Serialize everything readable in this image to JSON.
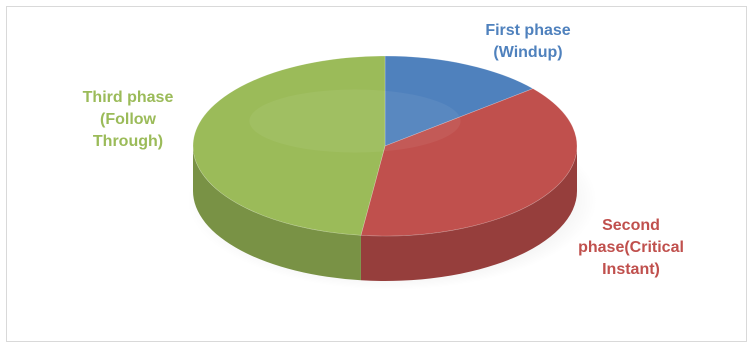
{
  "chart_data": {
    "type": "pie",
    "title": "",
    "style": "3d",
    "labels_inside": false,
    "slices": [
      {
        "label_lines": [
          "First phase",
          "(Windup)"
        ],
        "value": 14,
        "color": "#4F81BD"
      },
      {
        "label_lines": [
          "Second",
          "phase(Critical",
          "Instant)"
        ],
        "value": 38,
        "color": "#C0504D"
      },
      {
        "label_lines": [
          "Third phase",
          "(Follow",
          "Through)"
        ],
        "value": 48,
        "color": "#9BBB59"
      }
    ]
  }
}
